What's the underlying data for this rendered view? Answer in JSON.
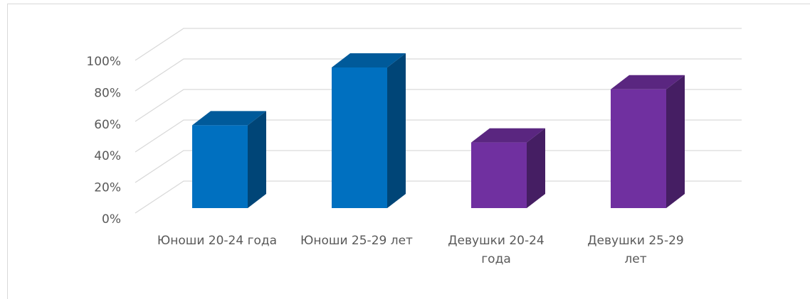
{
  "chart_data": {
    "type": "bar3d",
    "categories": [
      "Юноши 20-24 года",
      "Юноши 25-29 лет",
      "Девушки 20-24 года",
      "Девушки 25-29 лет"
    ],
    "values": [
      53,
      90,
      42,
      76
    ],
    "colors": [
      "#0070c0",
      "#0070c0",
      "#7030a0",
      "#7030a0"
    ],
    "ylim": [
      0,
      100
    ],
    "yticks": [
      {
        "value": 0,
        "label": "0%"
      },
      {
        "value": 20,
        "label": "20%"
      },
      {
        "value": 40,
        "label": "40%"
      },
      {
        "value": 60,
        "label": "60%"
      },
      {
        "value": 80,
        "label": "80%"
      },
      {
        "value": 100,
        "label": "100%"
      }
    ],
    "grid": true
  }
}
